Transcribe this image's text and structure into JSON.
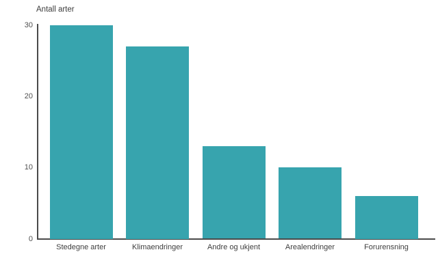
{
  "chart_data": {
    "type": "bar",
    "title": "Antall arter",
    "xlabel": "",
    "ylabel": "Antall arter",
    "categories": [
      "Stedegne arter",
      "Klimaendringer",
      "Andre og ukjent",
      "Arealendringer",
      "Forurensning"
    ],
    "values": [
      30,
      27,
      13,
      10,
      6
    ],
    "ylim": [
      0,
      30
    ],
    "yticks": [
      0,
      10,
      20,
      30
    ],
    "grid": false,
    "legend": "none",
    "background": "#ffffff",
    "colors": {
      "bar": "#37a4ae",
      "axis": "#4a4a4a",
      "tick_text": "#4f4f4f",
      "category_text": "#3d3d3d",
      "title_text": "#3b3b3b"
    }
  }
}
